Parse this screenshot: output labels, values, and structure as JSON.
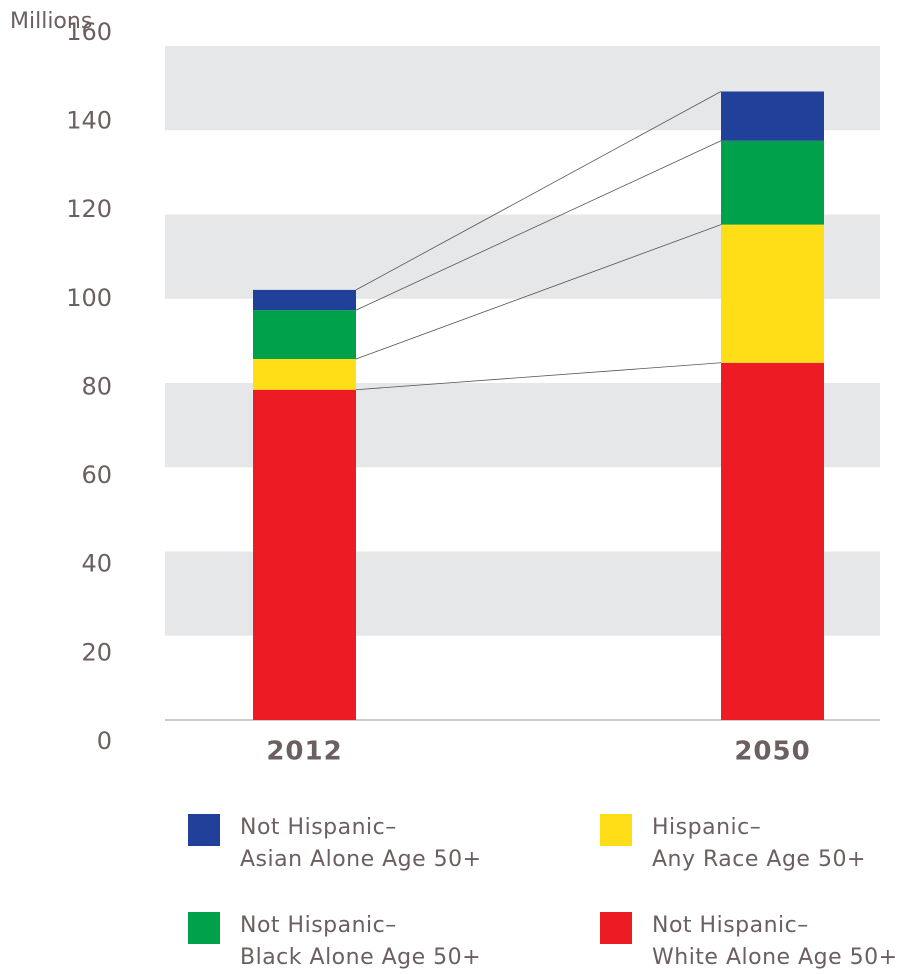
{
  "chart_data": {
    "type": "stacked_bar",
    "y_label": "Millions",
    "categories": [
      "2012",
      "2050"
    ],
    "series": [
      {
        "name": "Not Hispanic–\nWhite Alone Age 50+",
        "color": "#ed1c24",
        "values": [
          78.4,
          84.8
        ]
      },
      {
        "name": "Hispanic–\nAny Race Age 50+",
        "color": "#ffde17",
        "values": [
          7.3,
          32.8
        ]
      },
      {
        "name": "Not Hispanic–\nBlack Alone Age 50+",
        "color": "#00a14b",
        "values": [
          11.6,
          19.9
        ]
      },
      {
        "name": "Not Hispanic–\nAsian Alone Age 50+",
        "color": "#21409a",
        "values": [
          4.8,
          11.7
        ]
      }
    ],
    "ylim": [
      0,
      160
    ],
    "yticks": [
      0,
      20,
      40,
      60,
      80,
      100,
      120,
      140,
      160
    ],
    "grid": "bands"
  }
}
